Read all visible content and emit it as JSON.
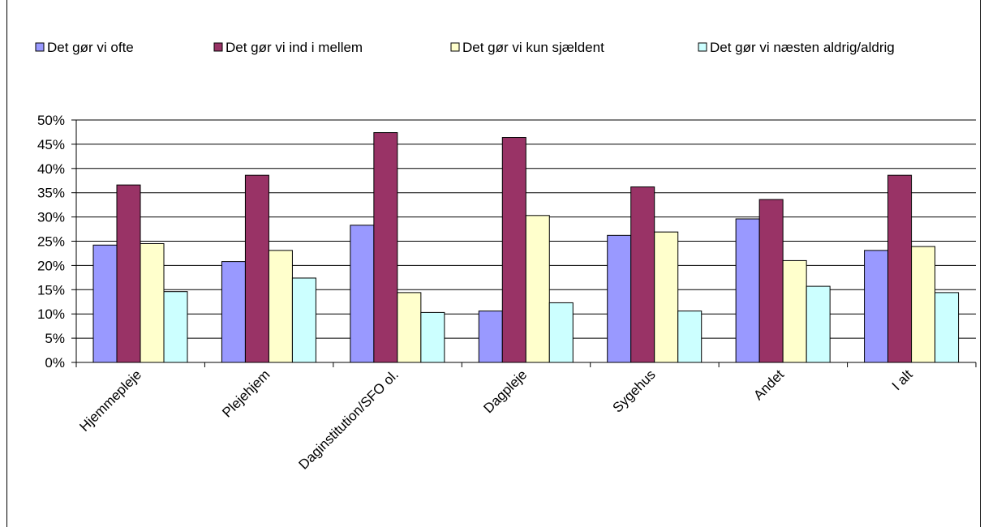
{
  "chart_data": {
    "type": "bar",
    "categories": [
      "Hjemmepleje",
      "Plejehjem",
      "Daginstitution/SFO ol.",
      "Dagpleje",
      "Sygehus",
      "Andet",
      "I alt"
    ],
    "series": [
      {
        "name": "Det gør vi ofte",
        "color": "#9999ff",
        "values": [
          24.2,
          20.8,
          28.3,
          10.6,
          26.2,
          29.6,
          23.1
        ]
      },
      {
        "name": "Det gør vi ind i mellem",
        "color": "#993366",
        "values": [
          36.6,
          38.6,
          47.4,
          46.4,
          36.2,
          33.6,
          38.6
        ]
      },
      {
        "name": "Det gør vi kun sjældent",
        "color": "#ffffcc",
        "values": [
          24.5,
          23.1,
          14.4,
          30.3,
          26.9,
          21.0,
          23.9
        ]
      },
      {
        "name": "Det gør vi næsten aldrig/aldrig",
        "color": "#ccffff",
        "values": [
          14.6,
          17.4,
          10.3,
          12.3,
          10.6,
          15.7,
          14.4
        ]
      }
    ],
    "ylim": [
      0,
      50
    ],
    "yticks": [
      {
        "value": 0,
        "label": "0%"
      },
      {
        "value": 5,
        "label": "5%"
      },
      {
        "value": 10,
        "label": "10%"
      },
      {
        "value": 15,
        "label": "15%"
      },
      {
        "value": 20,
        "label": "20%"
      },
      {
        "value": 25,
        "label": "25%"
      },
      {
        "value": 30,
        "label": "30%"
      },
      {
        "value": 35,
        "label": "35%"
      },
      {
        "value": 40,
        "label": "40%"
      },
      {
        "value": 45,
        "label": "45%"
      },
      {
        "value": 50,
        "label": "50%"
      }
    ],
    "grid": true,
    "legend_position": "top"
  }
}
